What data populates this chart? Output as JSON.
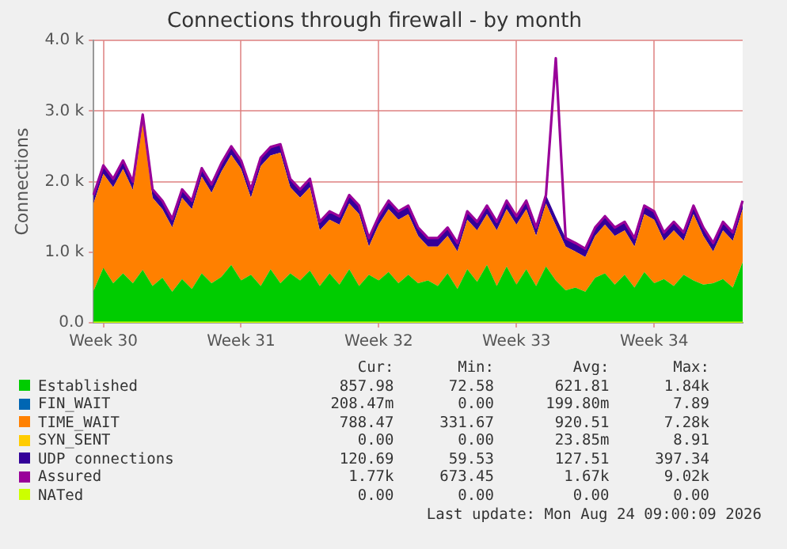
{
  "chart_data": {
    "type": "area",
    "title": "Connections through firewall - by month",
    "ylabel": "Connections",
    "stacked": true,
    "grid": true,
    "legend": "bottom",
    "marker": "none",
    "categories": [
      null,
      "Week 30",
      null,
      null,
      null,
      null,
      null,
      null,
      null,
      null,
      null,
      null,
      null,
      null,
      null,
      "Week 31",
      null,
      null,
      null,
      null,
      null,
      null,
      null,
      null,
      null,
      null,
      null,
      null,
      null,
      "Week 32",
      null,
      null,
      null,
      null,
      null,
      null,
      null,
      null,
      null,
      null,
      null,
      null,
      null,
      "Week 33",
      null,
      null,
      null,
      null,
      null,
      null,
      null,
      null,
      null,
      null,
      null,
      null,
      null,
      "Week 34",
      null,
      null,
      null,
      null,
      null,
      null,
      null,
      null,
      null
    ],
    "ylim": [
      0,
      4000
    ],
    "yticks": [
      {
        "value": 0,
        "label": "0.0"
      },
      {
        "value": 1000,
        "label": "1.0 k"
      },
      {
        "value": 2000,
        "label": "2.0 k"
      },
      {
        "value": 3000,
        "label": "3.0 k"
      },
      {
        "value": 4000,
        "label": "4.0 k"
      }
    ],
    "series": [
      {
        "name": "Established",
        "color": "#00cc00",
        "type": "area",
        "values": [
          450,
          780,
          560,
          700,
          560,
          750,
          520,
          640,
          440,
          620,
          480,
          700,
          560,
          650,
          820,
          600,
          680,
          520,
          760,
          560,
          700,
          600,
          740,
          520,
          700,
          540,
          760,
          520,
          680,
          600,
          720,
          560,
          680,
          560,
          600,
          520,
          700,
          480,
          760,
          580,
          820,
          520,
          800,
          540,
          760,
          520,
          800,
          600,
          460,
          500,
          440,
          640,
          700,
          540,
          680,
          500,
          720,
          560,
          620,
          520,
          680,
          600,
          540,
          560,
          620,
          500,
          860
        ]
      },
      {
        "name": "FIN_WAIT",
        "color": "#0066b3",
        "type": "area",
        "values": [
          null,
          null,
          null,
          null,
          null,
          null,
          null,
          null,
          null,
          null,
          null,
          null,
          null,
          null,
          null,
          null,
          null,
          null,
          null,
          null,
          null,
          null,
          null,
          null,
          null,
          null,
          null,
          null,
          null,
          null,
          null,
          null,
          null,
          null,
          null,
          null,
          null,
          null,
          null,
          null,
          null,
          null,
          null,
          null,
          null,
          null,
          null,
          null,
          null,
          null,
          null,
          null,
          null,
          null,
          null,
          null,
          null,
          null,
          null,
          null,
          null,
          null,
          null,
          null,
          null,
          null,
          null
        ]
      },
      {
        "name": "TIME_WAIT",
        "color": "#ff8000",
        "type": "area",
        "values": [
          1240,
          1330,
          1360,
          1480,
          1320,
          2080,
          1250,
          970,
          910,
          1150,
          1130,
          1370,
          1280,
          1490,
          1560,
          1580,
          1090,
          1700,
          1610,
          1850,
          1220,
          1170,
          1180,
          790,
          760,
          850,
          930,
          1020,
          400,
          790,
          890,
          900,
          860,
          670,
          480,
          560,
          530,
          530,
          700,
          730,
          720,
          790,
          810,
          850,
          850,
          710,
          890,
          780,
          620,
          510,
          490,
          590,
          690,
          690,
          630,
          580,
          820,
          900,
          540,
          790,
          480,
          940,
          690,
          450,
          690,
          660,
          750
        ]
      },
      {
        "name": "SYN_SENT",
        "color": "#ffcc00",
        "type": "area",
        "values": [
          null,
          null,
          null,
          null,
          null,
          null,
          null,
          null,
          null,
          null,
          null,
          null,
          null,
          null,
          null,
          null,
          null,
          null,
          null,
          null,
          null,
          null,
          null,
          null,
          null,
          null,
          null,
          null,
          null,
          null,
          null,
          null,
          null,
          null,
          null,
          null,
          null,
          null,
          null,
          null,
          null,
          null,
          null,
          null,
          null,
          null,
          null,
          null,
          null,
          null,
          null,
          null,
          null,
          null,
          null,
          null,
          null,
          null,
          null,
          null,
          null,
          null,
          null,
          null,
          null,
          null,
          null
        ]
      },
      {
        "name": "UDP connections",
        "color": "#330099",
        "type": "area",
        "values": [
          120,
          120,
          120,
          120,
          120,
          120,
          120,
          120,
          120,
          120,
          120,
          120,
          120,
          120,
          120,
          120,
          120,
          120,
          120,
          120,
          120,
          120,
          120,
          120,
          120,
          120,
          120,
          120,
          120,
          120,
          120,
          120,
          120,
          120,
          120,
          120,
          120,
          120,
          120,
          120,
          120,
          120,
          120,
          120,
          120,
          120,
          120,
          120,
          120,
          120,
          120,
          120,
          120,
          120,
          120,
          120,
          120,
          120,
          120,
          120,
          120,
          120,
          120,
          120,
          120,
          120,
          120
        ]
      },
      {
        "name": "Assured",
        "color": "#990099",
        "type": "line",
        "values": [
          1810,
          2230,
          2040,
          2300,
          2000,
          2950,
          1890,
          1730,
          1470,
          1890,
          1730,
          2190,
          1960,
          2260,
          2500,
          2300,
          1890,
          2340,
          2490,
          2530,
          2040,
          1890,
          2040,
          1430,
          1580,
          1510,
          1810,
          1660,
          1200,
          1510,
          1730,
          1580,
          1660,
          1350,
          1200,
          1200,
          1350,
          1130,
          1580,
          1430,
          1660,
          1430,
          1730,
          1510,
          1730,
          1350,
          1810,
          3750,
          1200,
          1130,
          1050,
          1350,
          1510,
          1350,
          1430,
          1200,
          1660,
          1580,
          1280,
          1430,
          1280,
          1660,
          1350,
          1130,
          1430,
          1280,
          1730
        ]
      },
      {
        "name": "NATed",
        "color": "#ccff00",
        "type": "line",
        "values": [
          0,
          0,
          0,
          0,
          0,
          0,
          0,
          0,
          0,
          0,
          0,
          0,
          0,
          0,
          0,
          0,
          0,
          0,
          0,
          0,
          0,
          0,
          0,
          0,
          0,
          0,
          0,
          0,
          0,
          0,
          0,
          0,
          0,
          0,
          0,
          0,
          0,
          0,
          0,
          0,
          0,
          0,
          0,
          0,
          0,
          0,
          0,
          0,
          0,
          0,
          0,
          0,
          0,
          0,
          0,
          0,
          0,
          0,
          0,
          0,
          0,
          0,
          0,
          0,
          0,
          0,
          0
        ]
      }
    ],
    "annotations": [
      "Cur:",
      "Min:",
      "Avg:",
      "Max:",
      "857.98",
      "72.58",
      "621.81",
      "1.84k",
      "208.47m",
      "0.00",
      "199.80m",
      "7.89",
      "788.47",
      "331.67",
      "920.51",
      "7.28k",
      "0.00",
      "0.00",
      "23.85m",
      "8.91",
      "120.69",
      "59.53",
      "127.51",
      "397.34",
      "1.77k",
      "673.45",
      "1.67k",
      "9.02k",
      "0.00",
      "0.00",
      "0.00",
      "0.00",
      "Last update: Mon Aug 24 09:00:09 2026"
    ]
  }
}
